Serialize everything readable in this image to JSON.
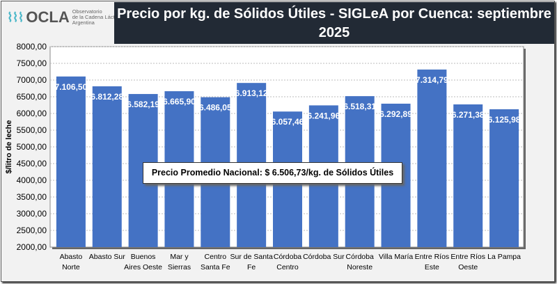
{
  "logo": {
    "name": "OCLA",
    "line1": "Observatorio",
    "line2": "de la Cadena Láctea",
    "line3": "Argentina"
  },
  "title": "Precio por kg. de Sólidos Útiles - SIGLeA por Cuenca:   septiembre 2025",
  "annotation": "Precio Promedio Nacional: $ 6.506,73/kg. de Sólidos Útiles",
  "colors": {
    "bar": "#4472c4",
    "title_bg": "#222a35"
  },
  "chart_data": {
    "type": "bar",
    "title": "Precio por kg. de Sólidos Útiles - SIGLeA por Cuenca:   septiembre 2025",
    "ylabel": "$/litro de leche",
    "xlabel": "",
    "ylim": [
      2000,
      8000
    ],
    "yticks": [
      "2000,00",
      "2500,00",
      "3000,00",
      "3500,00",
      "4000,00",
      "4500,00",
      "5000,00",
      "5500,00",
      "6000,00",
      "6500,00",
      "7000,00",
      "7500,00",
      "8000,00"
    ],
    "grid": true,
    "categories": [
      [
        "Abasto",
        "Norte"
      ],
      [
        "Abasto Sur"
      ],
      [
        "Buenos",
        "Aires Oeste"
      ],
      [
        "Mar y",
        "Sierras"
      ],
      [
        "Centro",
        "Santa Fe"
      ],
      [
        "Sur de Santa",
        "Fe"
      ],
      [
        "Córdoba",
        "Centro"
      ],
      [
        "Córdoba Sur"
      ],
      [
        "Córdoba",
        "Noreste"
      ],
      [
        "Villa María"
      ],
      [
        "Entre Ríos",
        "Este"
      ],
      [
        "Entre Ríos",
        "Oeste"
      ],
      [
        "La Pampa"
      ]
    ],
    "values": [
      7106.5,
      6812.28,
      6582.19,
      6665.9,
      6486.05,
      6913.12,
      6057.46,
      6241.96,
      6518.31,
      6292.89,
      7314.79,
      6271.38,
      6125.98
    ],
    "labels": [
      "7.106,50",
      "6.812,28",
      "6.582,19",
      "6.665,90",
      "6.486,05",
      "6.913,12",
      "6.057,46",
      "6.241,96",
      "6.518,31",
      "6.292,89",
      "7.314,79",
      "6.271,38",
      "6.125,98"
    ]
  }
}
